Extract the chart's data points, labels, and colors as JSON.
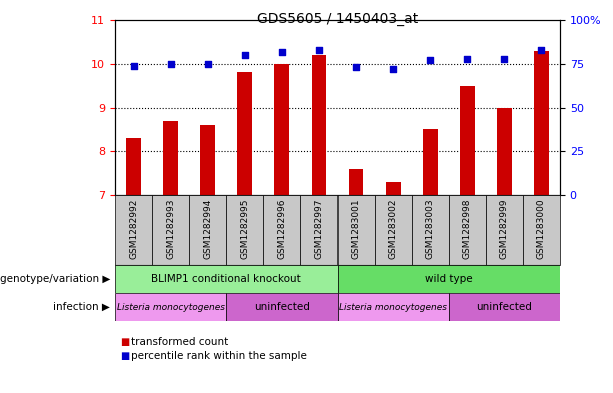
{
  "title": "GDS5605 / 1450403_at",
  "samples": [
    "GSM1282992",
    "GSM1282993",
    "GSM1282994",
    "GSM1282995",
    "GSM1282996",
    "GSM1282997",
    "GSM1283001",
    "GSM1283002",
    "GSM1283003",
    "GSM1282998",
    "GSM1282999",
    "GSM1283000"
  ],
  "transformed_count": [
    8.3,
    8.7,
    8.6,
    9.8,
    10.0,
    10.2,
    7.6,
    7.3,
    8.5,
    9.5,
    9.0,
    10.3
  ],
  "percentile_rank": [
    74,
    75,
    75,
    80,
    82,
    83,
    73,
    72,
    77,
    78,
    78,
    83
  ],
  "ylim_left": [
    7,
    11
  ],
  "ylim_right": [
    0,
    100
  ],
  "yticks_left": [
    7,
    8,
    9,
    10,
    11
  ],
  "yticks_right": [
    0,
    25,
    50,
    75,
    100
  ],
  "bar_color": "#cc0000",
  "dot_color": "#0000cc",
  "bar_width": 0.4,
  "genotype_groups": [
    {
      "label": "BLIMP1 conditional knockout",
      "start": 0,
      "end": 6,
      "color": "#99ee99"
    },
    {
      "label": "wild type",
      "start": 6,
      "end": 12,
      "color": "#66dd66"
    }
  ],
  "infection_groups": [
    {
      "label": "Listeria monocytogenes",
      "start": 0,
      "end": 3,
      "color": "#ee99ee"
    },
    {
      "label": "uninfected",
      "start": 3,
      "end": 6,
      "color": "#cc66cc"
    },
    {
      "label": "Listeria monocytogenes",
      "start": 6,
      "end": 9,
      "color": "#ee99ee"
    },
    {
      "label": "uninfected",
      "start": 9,
      "end": 12,
      "color": "#cc66cc"
    }
  ],
  "legend_items": [
    {
      "label": "transformed count",
      "color": "#cc0000"
    },
    {
      "label": "percentile rank within the sample",
      "color": "#0000cc"
    }
  ],
  "tick_bg_color": "#c8c8c8"
}
